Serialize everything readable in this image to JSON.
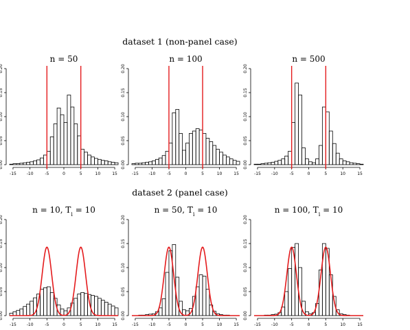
{
  "sections": [
    {
      "title": "dataset 1 (non-panel case)"
    },
    {
      "title": "dataset 2 (panel case)"
    }
  ],
  "chart_data": [
    {
      "type": "bar",
      "title": "n = 50",
      "xlim": [
        -16,
        16
      ],
      "ylim": [
        0,
        0.2
      ],
      "xticks": [
        -15,
        -10,
        -5,
        0,
        5,
        10,
        15
      ],
      "yticks": [
        "0.00",
        "0.05",
        "0.10",
        "0.15",
        "0.20"
      ],
      "bin_edges": [
        -16,
        -15,
        -14,
        -13,
        -12,
        -11,
        -10,
        -9,
        -8,
        -7,
        -6,
        -5,
        -4,
        -3,
        -2,
        -1,
        0,
        1,
        2,
        3,
        4,
        5,
        6,
        7,
        8,
        9,
        10,
        11,
        12,
        13,
        14,
        15,
        16
      ],
      "values": [
        0.001,
        0.002,
        0.002,
        0.003,
        0.004,
        0.005,
        0.006,
        0.008,
        0.01,
        0.014,
        0.02,
        0.028,
        0.058,
        0.085,
        0.118,
        0.104,
        0.088,
        0.145,
        0.12,
        0.085,
        0.06,
        0.032,
        0.026,
        0.02,
        0.016,
        0.013,
        0.011,
        0.009,
        0.008,
        0.006,
        0.005,
        0.004
      ],
      "vlines": [
        -5,
        5
      ],
      "bar_color": "#000000",
      "line_color": "#e41a1c"
    },
    {
      "type": "bar",
      "title": "n = 100",
      "xlim": [
        -16,
        16
      ],
      "ylim": [
        0,
        0.2
      ],
      "xticks": [
        -15,
        -10,
        -5,
        0,
        5,
        10,
        15
      ],
      "yticks": [
        "0.00",
        "0.05",
        "0.10",
        "0.15",
        "0.20"
      ],
      "bin_edges": [
        -16,
        -15,
        -14,
        -13,
        -12,
        -11,
        -10,
        -9,
        -8,
        -7,
        -6,
        -5,
        -4,
        -3,
        -2,
        -1,
        0,
        1,
        2,
        3,
        4,
        5,
        6,
        7,
        8,
        9,
        10,
        11,
        12,
        13,
        14,
        15,
        16
      ],
      "values": [
        0.002,
        0.003,
        0.003,
        0.004,
        0.005,
        0.006,
        0.008,
        0.011,
        0.014,
        0.019,
        0.028,
        0.045,
        0.108,
        0.115,
        0.065,
        0.03,
        0.045,
        0.065,
        0.07,
        0.075,
        0.072,
        0.065,
        0.055,
        0.048,
        0.04,
        0.032,
        0.026,
        0.02,
        0.016,
        0.012,
        0.009,
        0.007
      ],
      "vlines": [
        -5,
        5
      ],
      "bar_color": "#000000",
      "line_color": "#e41a1c"
    },
    {
      "type": "bar",
      "title": "n = 500",
      "xlim": [
        -16,
        16
      ],
      "ylim": [
        0,
        0.2
      ],
      "xticks": [
        -15,
        -10,
        -5,
        0,
        5,
        10,
        15
      ],
      "yticks": [
        "0.00",
        "0.05",
        "0.10",
        "0.15",
        "0.20"
      ],
      "bin_edges": [
        -16,
        -15,
        -14,
        -13,
        -12,
        -11,
        -10,
        -9,
        -8,
        -7,
        -6,
        -5,
        -4,
        -3,
        -2,
        -1,
        0,
        1,
        2,
        3,
        4,
        5,
        6,
        7,
        8,
        9,
        10,
        11,
        12,
        13,
        14,
        15,
        16
      ],
      "values": [
        0.001,
        0.001,
        0.002,
        0.003,
        0.004,
        0.005,
        0.007,
        0.009,
        0.012,
        0.018,
        0.028,
        0.088,
        0.17,
        0.145,
        0.035,
        0.012,
        0.006,
        0.004,
        0.012,
        0.04,
        0.12,
        0.11,
        0.07,
        0.044,
        0.024,
        0.012,
        0.008,
        0.006,
        0.004,
        0.003,
        0.002,
        0.001
      ],
      "vlines": [
        -5,
        5
      ],
      "bar_color": "#000000",
      "line_color": "#e41a1c"
    },
    {
      "type": "bar",
      "title": "n = 10, T_i = 10",
      "xlim": [
        -16,
        16
      ],
      "ylim": [
        0,
        0.2
      ],
      "xticks": [
        -15,
        -10,
        -5,
        0,
        5,
        10,
        15
      ],
      "yticks": [
        "0.00",
        "0.05",
        "0.10",
        "0.15",
        "0.20"
      ],
      "bin_edges": [
        -16,
        -15,
        -14,
        -13,
        -12,
        -11,
        -10,
        -9,
        -8,
        -7,
        -6,
        -5,
        -4,
        -3,
        -2,
        -1,
        0,
        1,
        2,
        3,
        4,
        5,
        6,
        7,
        8,
        9,
        10,
        11,
        12,
        13,
        14,
        15,
        16
      ],
      "values": [
        0.005,
        0.008,
        0.011,
        0.014,
        0.019,
        0.024,
        0.03,
        0.037,
        0.045,
        0.055,
        0.058,
        0.06,
        0.048,
        0.036,
        0.022,
        0.014,
        0.01,
        0.016,
        0.026,
        0.036,
        0.045,
        0.048,
        0.046,
        0.044,
        0.042,
        0.04,
        0.036,
        0.032,
        0.028,
        0.024,
        0.02,
        0.016
      ],
      "density_curve": {
        "type": "mixture",
        "means": [
          -5,
          5
        ],
        "sd": 1.4,
        "weights": [
          0.5,
          0.5
        ]
      },
      "bar_color": "#000000",
      "line_color": "#e41a1c"
    },
    {
      "type": "bar",
      "title": "n = 50, T_i = 10",
      "xlim": [
        -16,
        16
      ],
      "ylim": [
        0,
        0.2
      ],
      "xticks": [
        -15,
        -10,
        -5,
        0,
        5,
        10,
        15
      ],
      "yticks": [
        "0.00",
        "0.05",
        "0.10",
        "0.15",
        "0.20"
      ],
      "bin_edges": [
        -16,
        -15,
        -14,
        -13,
        -12,
        -11,
        -10,
        -9,
        -8,
        -7,
        -6,
        -5,
        -4,
        -3,
        -2,
        -1,
        0,
        1,
        2,
        3,
        4,
        5,
        6,
        7,
        8,
        9,
        10,
        11,
        12,
        13,
        14,
        15,
        16
      ],
      "values": [
        0.0,
        0.0,
        0.001,
        0.001,
        0.002,
        0.003,
        0.004,
        0.008,
        0.016,
        0.035,
        0.09,
        0.135,
        0.148,
        0.08,
        0.03,
        0.012,
        0.01,
        0.015,
        0.04,
        0.06,
        0.085,
        0.082,
        0.055,
        0.022,
        0.009,
        0.004,
        0.002,
        0.001,
        0.001,
        0.0,
        0.0,
        0.0
      ],
      "density_curve": {
        "type": "mixture",
        "means": [
          -5,
          5
        ],
        "sd": 1.4,
        "weights": [
          0.5,
          0.5
        ]
      },
      "bar_color": "#000000",
      "line_color": "#e41a1c"
    },
    {
      "type": "bar",
      "title": "n = 100, T_i = 10",
      "xlim": [
        -16,
        16
      ],
      "ylim": [
        0,
        0.2
      ],
      "xticks": [
        -15,
        -10,
        -5,
        0,
        5,
        10,
        15
      ],
      "yticks": [
        "0.00",
        "0.05",
        "0.10",
        "0.15",
        "0.20"
      ],
      "bin_edges": [
        -16,
        -15,
        -14,
        -13,
        -12,
        -11,
        -10,
        -9,
        -8,
        -7,
        -6,
        -5,
        -4,
        -3,
        -2,
        -1,
        0,
        1,
        2,
        3,
        4,
        5,
        6,
        7,
        8,
        9,
        10,
        11,
        12,
        13,
        14,
        15,
        16
      ],
      "values": [
        0.0,
        0.0,
        0.0,
        0.001,
        0.001,
        0.002,
        0.003,
        0.006,
        0.018,
        0.05,
        0.098,
        0.142,
        0.15,
        0.1,
        0.03,
        0.008,
        0.004,
        0.006,
        0.025,
        0.095,
        0.15,
        0.14,
        0.085,
        0.04,
        0.012,
        0.004,
        0.002,
        0.001,
        0.0,
        0.0,
        0.0,
        0.0
      ],
      "density_curve": {
        "type": "mixture",
        "means": [
          -5,
          5
        ],
        "sd": 1.4,
        "weights": [
          0.5,
          0.5
        ]
      },
      "bar_color": "#000000",
      "line_color": "#e41a1c"
    }
  ]
}
